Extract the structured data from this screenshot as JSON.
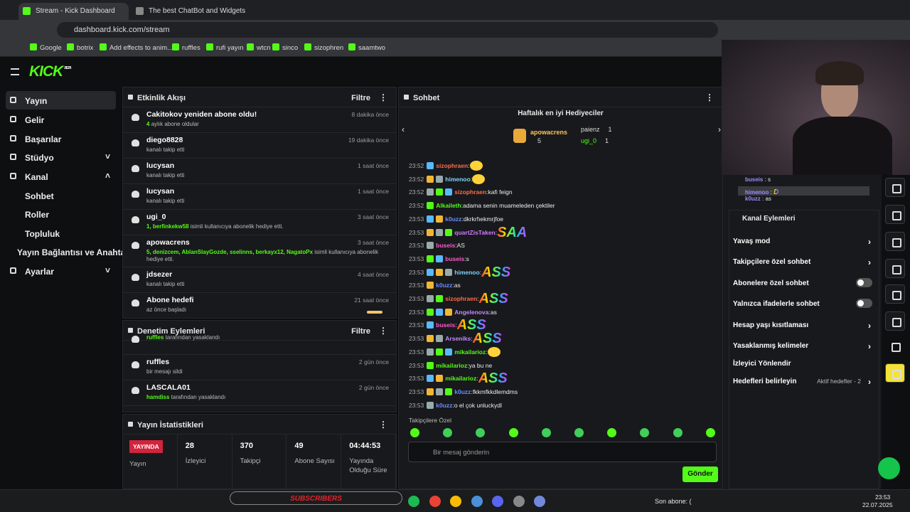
{
  "browser": {
    "tabs": [
      "Stream - Kick Dashboard",
      "The best ChatBot and Widgets"
    ],
    "url": "dashboard.kick.com/stream",
    "bookmarks": [
      "Google",
      "botrix",
      "Add effects to anim...",
      "ruffles",
      "rufi yayın",
      "wtcn",
      "sinco",
      "sizophren",
      "saamtwo"
    ]
  },
  "header": {
    "logo": "KICK",
    "badge": "BETA"
  },
  "sidebar": [
    "Yayın",
    "Gelir",
    "Başarılar",
    "Stüdyo",
    "Kanal",
    "Sohbet",
    "Roller",
    "Topluluk",
    "Yayın Bağlantısı ve Anahtarı",
    "Ayarlar"
  ],
  "activity": {
    "title": "Etkinlik Akışı",
    "filter": "Filtre",
    "items": [
      {
        "name": "Cakitokov yeniden abone oldu!",
        "time": "8 dakika önce",
        "highlight": "4",
        "text": "aylık abone oldular"
      },
      {
        "name": "diego8828",
        "time": "19 dakika önce",
        "text": "kanalı takip etti"
      },
      {
        "name": "lucysan",
        "time": "1 saat önce",
        "text": "kanalı takip etti"
      },
      {
        "name": "lucysan",
        "time": "1 saat önce",
        "text": "kanalı takip etti"
      },
      {
        "name": "ugi_0",
        "time": "3 saat önce",
        "highlight": "1, berfinkekw58",
        "text": "isimli kullanıcıya abonelik hediye etti."
      },
      {
        "name": "apowacrens",
        "time": "3 saat önce",
        "highlight": "5, denizcem, AblanSlayGozde, sselinns, berkayx12, NagatoPx",
        "text": "isimli kullanıcıya abonelik hediye etti."
      },
      {
        "name": "jdsezer",
        "time": "4 saat önce",
        "text": "kanalı takip etti"
      },
      {
        "name": "Abone hedefi",
        "time": "21 saat önce",
        "text": "az önce başladı"
      }
    ]
  },
  "moderation": {
    "title": "Denetim Eylemleri",
    "filter": "Filtre",
    "items": [
      {
        "highlight": "ruffles",
        "text": "tarafından yasaklandı"
      },
      {
        "name": "ruffles",
        "time": "2 gün önce",
        "text": "bir mesajı sildi"
      },
      {
        "name": "LASCALA01",
        "time": "2 gün önce",
        "highlight": "hamdiss",
        "text": "tarafından yasaklandı"
      }
    ]
  },
  "stats": {
    "title": "Yayın İstatistikleri",
    "live": "YAYINDA",
    "live_label": "Yayın",
    "items": [
      {
        "value": "28",
        "label": "İzleyici"
      },
      {
        "value": "370",
        "label": "Takipçi"
      },
      {
        "value": "49",
        "label": "Abone Sayısı"
      },
      {
        "value": "04:44:53",
        "label": "Yayında Olduğu Süre"
      }
    ]
  },
  "chat": {
    "title": "Sohbet",
    "gifters_title": "Haftalık en iyi Hediyeciler",
    "gifters": [
      {
        "name": "apowacrens",
        "count": 5
      },
      {
        "name": "paienz",
        "count": 1
      },
      {
        "name": "ugi_0",
        "count": 1
      }
    ],
    "messages": [
      {
        "time": "23:52",
        "user": "sizophraen",
        "color": "#ff6b4a"
      },
      {
        "time": "23:52",
        "user": "himenoo",
        "color": "#7fd4ff"
      },
      {
        "time": "23:52",
        "user": "sizophraen",
        "color": "#ff6b4a",
        "text": "kafi feign"
      },
      {
        "time": "23:52",
        "user": "Alkaileth",
        "color": "#53fc18",
        "text": "adama senin muameleden çektiler"
      },
      {
        "time": "23:53",
        "user": "k0uzz",
        "color": "#6b8cff",
        "text": "dkrkrfıekmrjfoe"
      },
      {
        "time": "23:53",
        "user": "quartZisTaken",
        "color": "#d07bff",
        "emote": "SAA"
      },
      {
        "time": "23:53",
        "user": "buseis",
        "color": "#ff5bd0",
        "text": "AS"
      },
      {
        "time": "23:53",
        "user": "buseis",
        "color": "#ff5bd0",
        "text": "s"
      },
      {
        "time": "23:53",
        "user": "himenoo",
        "color": "#7fd4ff",
        "emote": "ASS"
      },
      {
        "time": "23:53",
        "user": "k0uzz",
        "color": "#6b8cff",
        "text": "as"
      },
      {
        "time": "23:53",
        "user": "sizophraen",
        "color": "#ff6b4a",
        "emote": "ASS"
      },
      {
        "time": "23:53",
        "user": "Angelenova",
        "color": "#c68aff",
        "text": "as"
      },
      {
        "time": "23:53",
        "user": "buseis",
        "color": "#ff5bd0",
        "emote": "ASS"
      },
      {
        "time": "23:53",
        "user": "Arseniks",
        "color": "#c68aff",
        "emote": "ASS"
      },
      {
        "time": "23:53",
        "user": "mikailarioz",
        "color": "#53fc18"
      },
      {
        "time": "23:53",
        "user": "mikailarioz",
        "color": "#53fc18",
        "text": "ya bu ne"
      },
      {
        "time": "23:53",
        "user": "mikailarioz",
        "color": "#53fc18",
        "emote": "ASS"
      },
      {
        "time": "23:53",
        "user": "k0uzz",
        "color": "#6b8cff",
        "text": "fkkmfkkdlemdms"
      },
      {
        "time": "23:53",
        "user": "k0uzz",
        "color": "#6b8cff",
        "text": "o el çok unluckydl"
      }
    ],
    "followers_only": "Takipçilere Özel",
    "placeholder": "Bir mesaj gönderin",
    "send": "Gönder"
  },
  "overlay": [
    {
      "user": "buseis",
      "text": "s"
    },
    {
      "user": "himenoo",
      "emote": "D"
    },
    {
      "user": "k0uzz",
      "text": "as"
    }
  ],
  "channel_actions": {
    "title": "Kanal Eylemleri",
    "items": [
      {
        "label": "Yavaş mod",
        "control": "arrow"
      },
      {
        "label": "Takipçilere özel sohbet",
        "control": "arrow"
      },
      {
        "label": "Abonelere özel sohbet",
        "control": "toggle"
      },
      {
        "label": "Yalnızca ifadelerle sohbet",
        "control": "toggle"
      },
      {
        "label": "Hesap yaşı kısıtlaması",
        "control": "arrow"
      },
      {
        "label": "Yasaklanmış kelimeler",
        "control": "arrow"
      },
      {
        "label": "İzleyici Yönlendir",
        "control": "none"
      },
      {
        "label": "Hedefleri belirleyin",
        "control": "arrow",
        "status": "Aktif hedefler - 2"
      }
    ]
  },
  "taskbar": {
    "widget": "SUBSCRIBERS",
    "last_sub": "Son abone: (",
    "time": "23:53",
    "date": "22.07.2025"
  }
}
